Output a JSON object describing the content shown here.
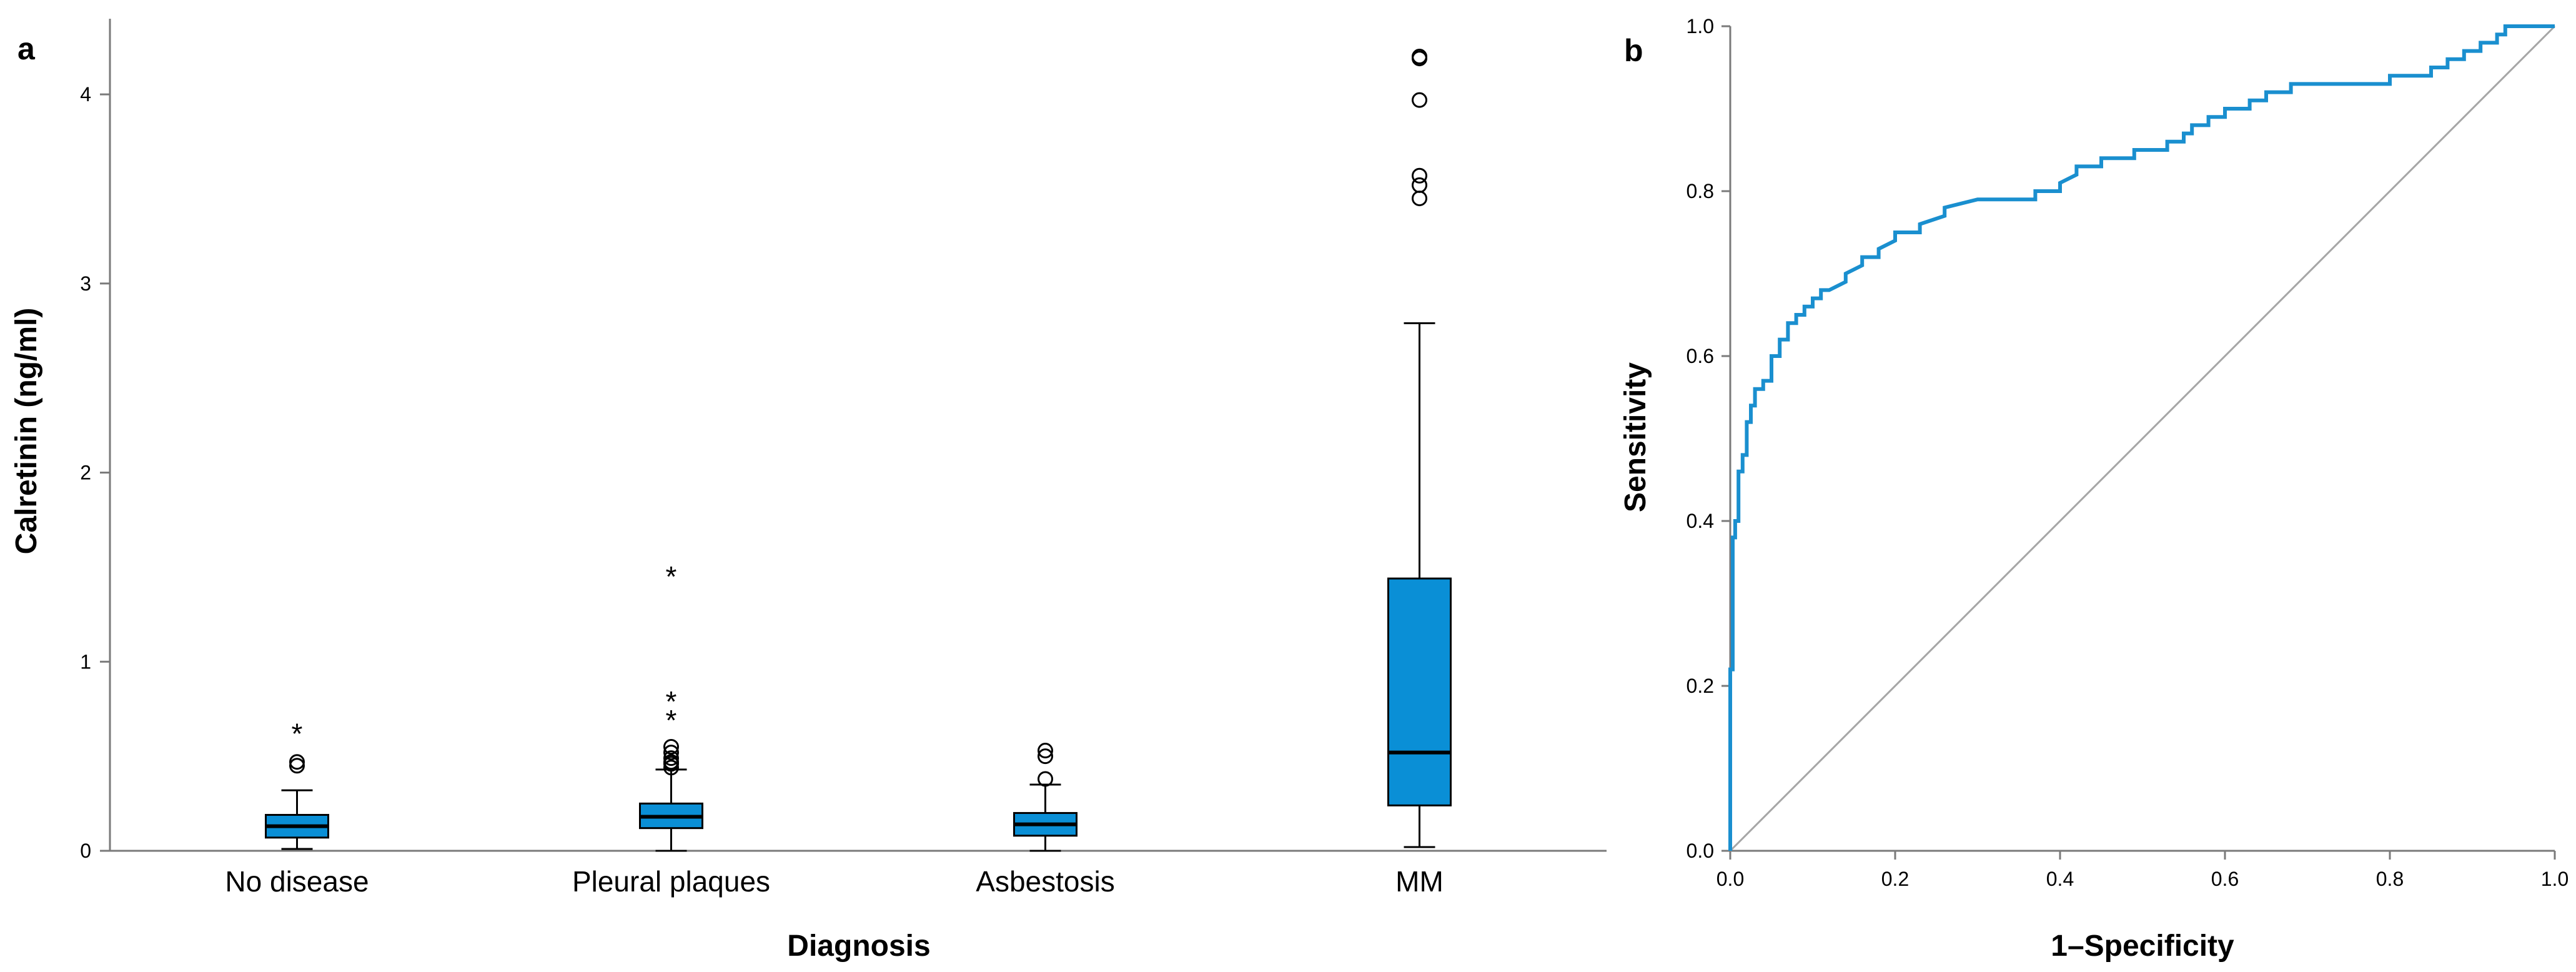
{
  "chart_data": [
    {
      "type": "box",
      "panel_label": "a",
      "xlabel": "Diagnosis",
      "ylabel": "Calretinin (ng/ml)",
      "ylim": [
        0,
        4.4
      ],
      "yticks": [
        "0",
        "1",
        "2",
        "3",
        "4"
      ],
      "box_color": "#0a8fd6",
      "categories": [
        "No disease",
        "Pleural plaques",
        "Asbestosis",
        "MM"
      ],
      "boxes": [
        {
          "category": "No disease",
          "whisker_low": 0.01,
          "q1": 0.07,
          "median": 0.13,
          "q3": 0.19,
          "whisker_high": 0.32,
          "outliers": [
            0.45,
            0.47
          ],
          "extremes": [
            0.64
          ]
        },
        {
          "category": "Pleural plaques",
          "whisker_low": 0.0,
          "q1": 0.12,
          "median": 0.18,
          "q3": 0.25,
          "whisker_high": 0.43,
          "outliers": [
            0.44,
            0.46,
            0.47,
            0.49,
            0.52,
            0.55
          ],
          "extremes": [
            0.71,
            0.81,
            1.47
          ]
        },
        {
          "category": "Asbestosis",
          "whisker_low": 0.0,
          "q1": 0.08,
          "median": 0.14,
          "q3": 0.2,
          "whisker_high": 0.35,
          "outliers": [
            0.38,
            0.5,
            0.53
          ],
          "extremes": []
        },
        {
          "category": "MM",
          "whisker_low": 0.02,
          "q1": 0.24,
          "median": 0.52,
          "q3": 1.44,
          "whisker_high": 2.79,
          "outliers": [
            3.45,
            3.52,
            3.57,
            3.97,
            4.19,
            4.2
          ],
          "extremes": []
        }
      ]
    },
    {
      "type": "line",
      "panel_label": "b",
      "title": "",
      "xlabel": "1–Specificity",
      "ylabel": "Sensitivity",
      "xlim": [
        0,
        1
      ],
      "ylim": [
        0,
        1
      ],
      "xticks": [
        "0.0",
        "0.2",
        "0.4",
        "0.6",
        "0.8",
        "1.0"
      ],
      "yticks": [
        "0.0",
        "0.2",
        "0.4",
        "0.6",
        "0.8",
        "1.0"
      ],
      "reference_line": {
        "x": [
          0,
          1
        ],
        "y": [
          0,
          1
        ],
        "color": "#a6a6a6"
      },
      "series": [
        {
          "name": "ROC curve",
          "color": "#1a8fcf",
          "x": [
            0,
            0,
            0.003,
            0.003,
            0.006,
            0.006,
            0.01,
            0.01,
            0.015,
            0.015,
            0.02,
            0.02,
            0.025,
            0.025,
            0.03,
            0.03,
            0.04,
            0.04,
            0.05,
            0.05,
            0.06,
            0.06,
            0.07,
            0.07,
            0.08,
            0.08,
            0.09,
            0.09,
            0.1,
            0.1,
            0.11,
            0.11,
            0.12,
            0.14,
            0.14,
            0.16,
            0.16,
            0.18,
            0.18,
            0.2,
            0.2,
            0.23,
            0.23,
            0.26,
            0.26,
            0.3,
            0.3,
            0.37,
            0.37,
            0.4,
            0.4,
            0.42,
            0.42,
            0.45,
            0.45,
            0.49,
            0.49,
            0.53,
            0.53,
            0.55,
            0.55,
            0.56,
            0.56,
            0.58,
            0.58,
            0.6,
            0.6,
            0.63,
            0.63,
            0.65,
            0.65,
            0.68,
            0.68,
            0.8,
            0.8,
            0.85,
            0.85,
            0.87,
            0.87,
            0.89,
            0.89,
            0.91,
            0.91,
            0.93,
            0.93,
            0.94,
            0.94,
            0.95,
            0.95,
            1.0
          ],
          "y": [
            0,
            0.22,
            0.22,
            0.38,
            0.38,
            0.4,
            0.4,
            0.46,
            0.46,
            0.48,
            0.48,
            0.52,
            0.52,
            0.54,
            0.54,
            0.56,
            0.56,
            0.57,
            0.57,
            0.6,
            0.6,
            0.62,
            0.62,
            0.64,
            0.64,
            0.65,
            0.65,
            0.66,
            0.66,
            0.67,
            0.67,
            0.68,
            0.68,
            0.69,
            0.7,
            0.71,
            0.72,
            0.72,
            0.73,
            0.74,
            0.75,
            0.75,
            0.76,
            0.77,
            0.78,
            0.79,
            0.79,
            0.79,
            0.8,
            0.8,
            0.81,
            0.82,
            0.83,
            0.83,
            0.84,
            0.84,
            0.85,
            0.85,
            0.86,
            0.86,
            0.87,
            0.87,
            0.88,
            0.88,
            0.89,
            0.89,
            0.9,
            0.9,
            0.91,
            0.91,
            0.92,
            0.92,
            0.93,
            0.93,
            0.94,
            0.94,
            0.95,
            0.95,
            0.96,
            0.96,
            0.97,
            0.97,
            0.98,
            0.98,
            0.99,
            0.99,
            1.0,
            1.0,
            1.0,
            1.0
          ]
        }
      ]
    }
  ]
}
